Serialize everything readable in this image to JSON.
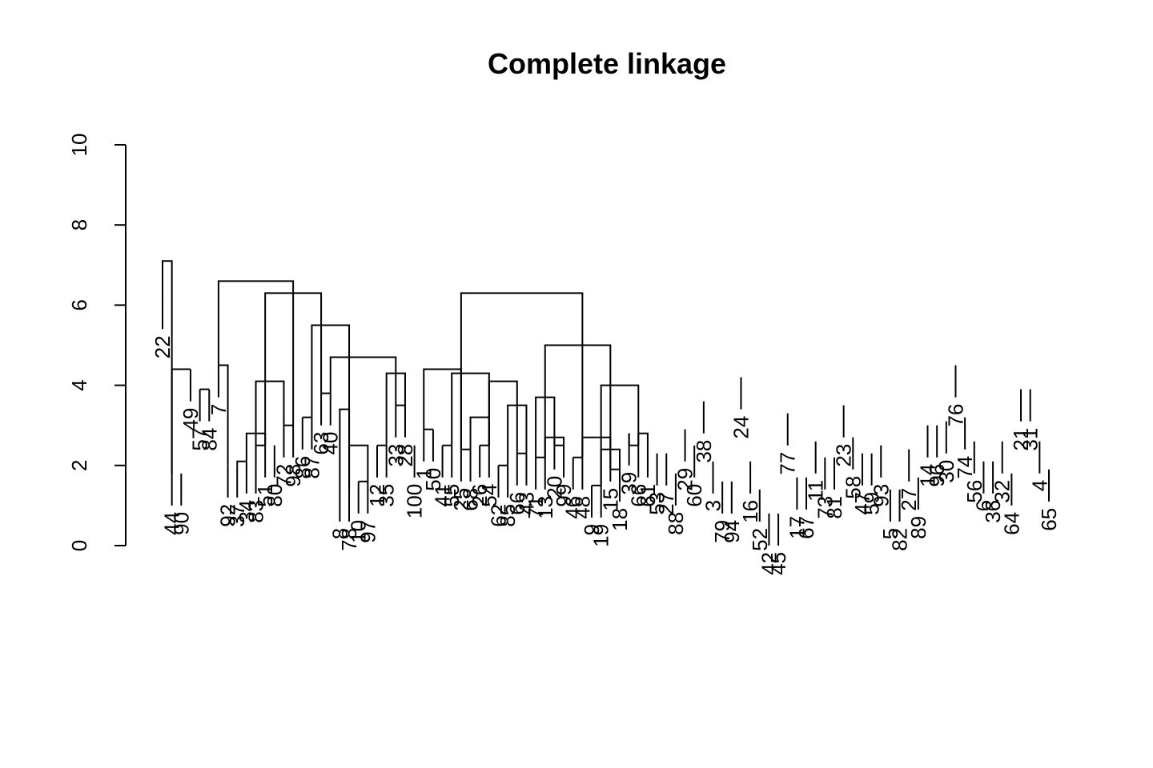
{
  "chart_data": {
    "type": "dendrogram",
    "title": "Complete linkage",
    "ylim": [
      0,
      10
    ],
    "y_ticks": [
      0,
      2,
      4,
      6,
      8,
      10
    ],
    "grid": false,
    "legend": "none",
    "line_color": "#000000",
    "leaves": [
      {
        "label": "22",
        "height": 6.2
      },
      {
        "label": "44",
        "height": 1.8
      },
      {
        "label": "90",
        "height": 1.8
      },
      {
        "label": "49",
        "height": 4.4
      },
      {
        "label": "57",
        "height": 3.9
      },
      {
        "label": "84",
        "height": 3.9
      },
      {
        "label": "7",
        "height": 4.5
      },
      {
        "label": "92",
        "height": 2.0
      },
      {
        "label": "37",
        "height": 2.0
      },
      {
        "label": "34",
        "height": 2.1
      },
      {
        "label": "83",
        "height": 2.1
      },
      {
        "label": "51",
        "height": 2.5
      },
      {
        "label": "80",
        "height": 2.5
      },
      {
        "label": "72",
        "height": 3.0
      },
      {
        "label": "98",
        "height": 3.0
      },
      {
        "label": "86",
        "height": 3.2
      },
      {
        "label": "87",
        "height": 3.2
      },
      {
        "label": "63",
        "height": 3.8
      },
      {
        "label": "40",
        "height": 3.8
      },
      {
        "label": "8",
        "height": 1.4
      },
      {
        "label": "78",
        "height": 1.4
      },
      {
        "label": "10",
        "height": 1.6
      },
      {
        "label": "97",
        "height": 1.6
      },
      {
        "label": "12",
        "height": 2.5
      },
      {
        "label": "35",
        "height": 2.5
      },
      {
        "label": "33",
        "height": 3.5
      },
      {
        "label": "28",
        "height": 3.5
      },
      {
        "label": "100",
        "height": 2.5
      },
      {
        "label": "1",
        "height": 2.9
      },
      {
        "label": "50",
        "height": 2.9
      },
      {
        "label": "41",
        "height": 2.5
      },
      {
        "label": "55",
        "height": 2.5
      },
      {
        "label": "25",
        "height": 2.4
      },
      {
        "label": "68",
        "height": 2.4
      },
      {
        "label": "26",
        "height": 2.5
      },
      {
        "label": "54",
        "height": 2.5
      },
      {
        "label": "62",
        "height": 2.0
      },
      {
        "label": "85",
        "height": 2.0
      },
      {
        "label": "66",
        "height": 2.3
      },
      {
        "label": "43",
        "height": 2.3
      },
      {
        "label": "71",
        "height": 2.2
      },
      {
        "label": "13",
        "height": 2.2
      },
      {
        "label": "20",
        "height": 2.7
      },
      {
        "label": "99",
        "height": 2.5
      },
      {
        "label": "46",
        "height": 2.2
      },
      {
        "label": "48",
        "height": 2.2
      },
      {
        "label": "9",
        "height": 1.5
      },
      {
        "label": "19",
        "height": 1.5
      },
      {
        "label": "15",
        "height": 2.4
      },
      {
        "label": "18",
        "height": 1.9
      },
      {
        "label": "39",
        "height": 2.8
      },
      {
        "label": "66b",
        "height": 2.5
      },
      {
        "label": "61",
        "height": 2.5
      },
      {
        "label": "53",
        "height": 2.3
      },
      {
        "label": "27",
        "height": 2.3
      },
      {
        "label": "88",
        "height": 1.8
      },
      {
        "label": "29",
        "height": 2.9
      },
      {
        "label": "60",
        "height": 2.5
      },
      {
        "label": "38",
        "height": 3.6
      },
      {
        "label": "3",
        "height": 2.1
      },
      {
        "label": "79",
        "height": 1.6
      },
      {
        "label": "94",
        "height": 1.6
      },
      {
        "label": "24",
        "height": 4.2
      },
      {
        "label": "16",
        "height": 2.1
      },
      {
        "label": "52",
        "height": 1.4
      },
      {
        "label": "42",
        "height": 0.8
      },
      {
        "label": "45",
        "height": 0.8
      },
      {
        "label": "77",
        "height": 3.3
      },
      {
        "label": "17",
        "height": 1.7
      },
      {
        "label": "67",
        "height": 1.7
      },
      {
        "label": "11",
        "height": 2.6
      },
      {
        "label": "73",
        "height": 2.2
      },
      {
        "label": "81",
        "height": 2.2
      },
      {
        "label": "23",
        "height": 3.5
      },
      {
        "label": "58",
        "height": 2.7
      },
      {
        "label": "47",
        "height": 2.3
      },
      {
        "label": "59",
        "height": 2.3
      },
      {
        "label": "93",
        "height": 2.5
      },
      {
        "label": "5",
        "height": 1.4
      },
      {
        "label": "82",
        "height": 1.4
      },
      {
        "label": "27b",
        "height": 2.4
      },
      {
        "label": "89",
        "height": 1.7
      },
      {
        "label": "14",
        "height": 3.0
      },
      {
        "label": "96",
        "height": 3.0
      },
      {
        "label": "30",
        "height": 3.1
      },
      {
        "label": "76",
        "height": 4.5
      },
      {
        "label": "74",
        "height": 3.2
      },
      {
        "label": "56",
        "height": 2.6
      },
      {
        "label": "6",
        "height": 2.1
      },
      {
        "label": "36",
        "height": 2.1
      },
      {
        "label": "32",
        "height": 2.6
      },
      {
        "label": "64",
        "height": 1.8
      },
      {
        "label": "21",
        "height": 3.9
      },
      {
        "label": "31",
        "height": 3.9
      },
      {
        "label": "4",
        "height": 2.6
      },
      {
        "label": "65",
        "height": 1.9
      }
    ],
    "merges": [
      {
        "left": 0,
        "right": 1,
        "height": 7.1
      },
      {
        "left": 1,
        "right": 3,
        "height": 4.4
      },
      {
        "left": 4,
        "right": 5,
        "height": 3.9
      },
      {
        "left": 6,
        "right": 7,
        "height": 4.5
      },
      {
        "left": 8,
        "right": 9,
        "height": 2.1
      },
      {
        "left": 10,
        "right": 11,
        "height": 2.5
      },
      {
        "left": 9,
        "right": 11,
        "height": 2.8
      },
      {
        "left": 13,
        "right": 14,
        "height": 3.0
      },
      {
        "left": 10,
        "right": 13,
        "height": 4.1
      },
      {
        "left": 15,
        "right": 16,
        "height": 3.2
      },
      {
        "left": 17,
        "right": 18,
        "height": 3.8
      },
      {
        "left": 19,
        "right": 20,
        "height": 3.4
      },
      {
        "left": 21,
        "right": 22,
        "height": 1.6
      },
      {
        "left": 20,
        "right": 22,
        "height": 2.5
      },
      {
        "left": 23,
        "right": 24,
        "height": 2.5
      },
      {
        "left": 25,
        "right": 26,
        "height": 3.5
      },
      {
        "left": 24,
        "right": 26,
        "height": 4.3
      },
      {
        "left": 18,
        "right": 25,
        "height": 4.7
      },
      {
        "left": 16,
        "right": 20,
        "height": 5.5
      },
      {
        "left": 11,
        "right": 17,
        "height": 6.3
      },
      {
        "left": 6,
        "right": 14,
        "height": 6.6
      },
      {
        "left": 28,
        "right": 29,
        "height": 2.9
      },
      {
        "left": 30,
        "right": 31,
        "height": 2.5
      },
      {
        "left": 32,
        "right": 33,
        "height": 2.4
      },
      {
        "left": 34,
        "right": 35,
        "height": 2.5
      },
      {
        "left": 33,
        "right": 35,
        "height": 3.2
      },
      {
        "left": 36,
        "right": 37,
        "height": 2.0
      },
      {
        "left": 38,
        "right": 39,
        "height": 2.3
      },
      {
        "left": 37,
        "right": 39,
        "height": 3.5
      },
      {
        "left": 35,
        "right": 38,
        "height": 4.1
      },
      {
        "left": 31,
        "right": 35,
        "height": 4.3
      },
      {
        "left": 28,
        "right": 32,
        "height": 4.4
      },
      {
        "left": 40,
        "right": 41,
        "height": 2.2
      },
      {
        "left": 42,
        "right": 43,
        "height": 2.5
      },
      {
        "left": 41,
        "right": 43,
        "height": 2.7
      },
      {
        "left": 40,
        "right": 42,
        "height": 3.7
      },
      {
        "left": 44,
        "right": 45,
        "height": 2.2
      },
      {
        "left": 46,
        "right": 47,
        "height": 1.5
      },
      {
        "left": 48,
        "right": 49,
        "height": 1.9
      },
      {
        "left": 47,
        "right": 49,
        "height": 2.4
      },
      {
        "left": 45,
        "right": 48,
        "height": 2.7
      },
      {
        "left": 50,
        "right": 51,
        "height": 2.5
      },
      {
        "left": 51,
        "right": 52,
        "height": 2.8
      },
      {
        "left": 47,
        "right": 51,
        "height": 4.0
      },
      {
        "left": 41,
        "right": 48,
        "height": 5.0
      },
      {
        "left": 32,
        "right": 45,
        "height": 6.3
      }
    ]
  }
}
